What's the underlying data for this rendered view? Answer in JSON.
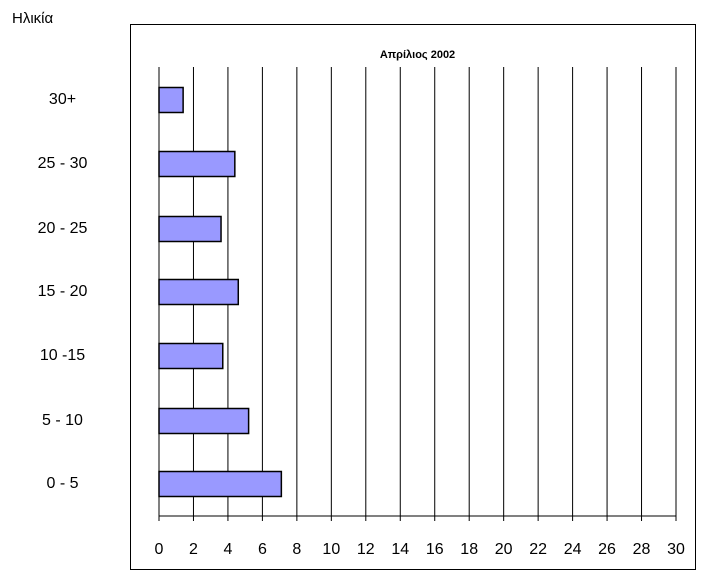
{
  "y_axis_title": "Ηλικία",
  "chart_data": {
    "type": "bar",
    "orientation": "horizontal",
    "title": "Απρίλιος  2002",
    "ylabel": "Ηλικία",
    "xlabel": "",
    "categories": [
      "0 - 5",
      "5 - 10",
      "10 -15",
      "15 - 20",
      "20 - 25",
      "25 - 30",
      "30+"
    ],
    "values": [
      7.1,
      5.2,
      3.7,
      4.6,
      3.6,
      4.4,
      1.4
    ],
    "xlim": [
      0,
      30
    ],
    "xticks": [
      "0",
      "2",
      "4",
      "6",
      "8",
      "10",
      "12",
      "14",
      "16",
      "18",
      "20",
      "22",
      "24",
      "26",
      "28",
      "30"
    ],
    "grid": "vertical",
    "bar_color": "#9999ff",
    "bar_edge_color": "#000000"
  }
}
